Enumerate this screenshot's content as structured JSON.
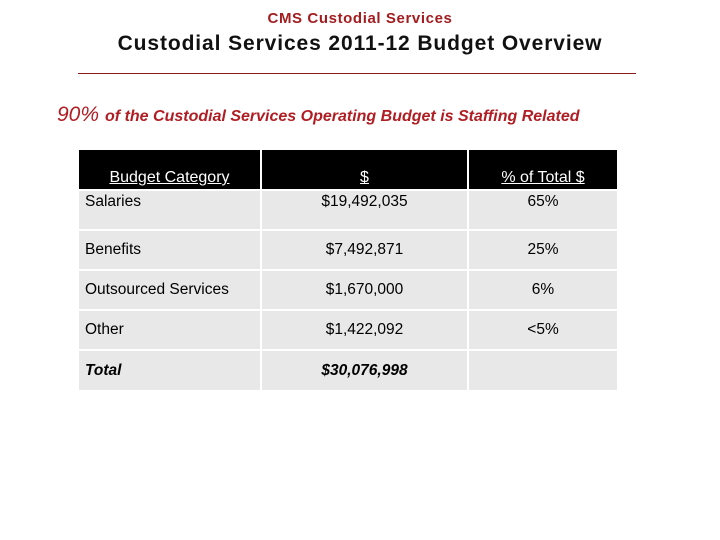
{
  "header": {
    "org_name": "CMS Custodial Services",
    "title": "Custodial Services 2011-12 Budget Overview"
  },
  "headline": {
    "percent": "90%",
    "text": "of the Custodial Services Operating Budget is Staffing Related"
  },
  "table": {
    "columns": [
      "Budget Category",
      "$",
      "% of Total $"
    ],
    "rows": [
      {
        "category": "Salaries",
        "amount": "$19,492,035",
        "percent": "65%"
      },
      {
        "category": "Benefits",
        "amount": "$7,492,871",
        "percent": "25%"
      },
      {
        "category": "Outsourced Services",
        "amount": "$1,670,000",
        "percent": "6%"
      },
      {
        "category": "Other",
        "amount": "$1,422,092",
        "percent": "<5%"
      }
    ],
    "total": {
      "category": "Total",
      "amount": "$30,076,998",
      "percent": ""
    }
  },
  "colors": {
    "accent": "#b01e23",
    "header_bg": "#000000",
    "cell_bg": "#e8e8e8"
  }
}
